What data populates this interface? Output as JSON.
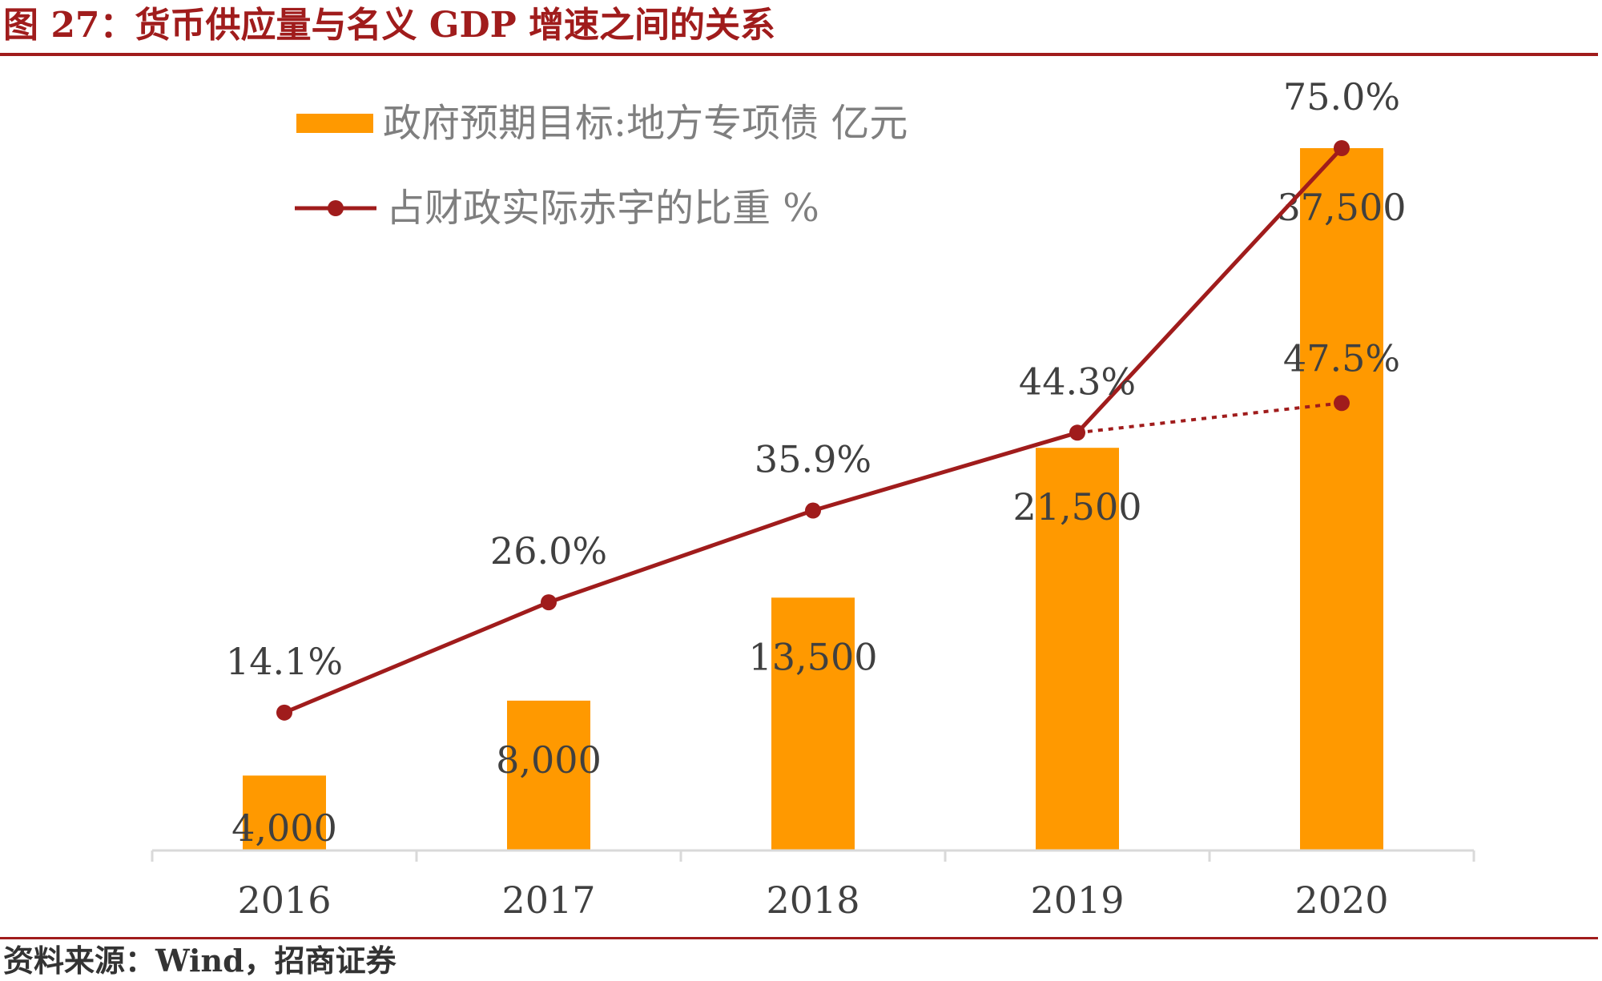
{
  "figure": {
    "title": "图 27：货币供应量与名义 GDP 增速之间的关系",
    "source": "资料来源：Wind，招商证券"
  },
  "colors": {
    "bar": "#ff9900",
    "line": "#a01c1c",
    "label": "#404040",
    "legend_text": "#7f7f7f",
    "axis": "#d9d9d9"
  },
  "chart_data": {
    "type": "bar",
    "categories": [
      "2016",
      "2017",
      "2018",
      "2019",
      "2020"
    ],
    "series": [
      {
        "name": "政府预期目标:地方专项债 亿元",
        "kind": "bar",
        "values": [
          4000,
          8000,
          13500,
          21500,
          37500
        ],
        "labels": [
          "4,000",
          "8,000",
          "13,500",
          "21,500",
          "37,500"
        ]
      },
      {
        "name": "占财政实际赤字的比重 %",
        "kind": "line",
        "values": [
          14.1,
          26.0,
          35.9,
          44.3,
          75.0
        ],
        "labels": [
          "14.1%",
          "26.0%",
          "35.9%",
          "44.3%",
          "75.0%"
        ]
      },
      {
        "kind": "line-dotted",
        "x": [
          "2019",
          "2020"
        ],
        "values": [
          44.3,
          47.5
        ],
        "labels": [
          "",
          "47.5%"
        ]
      }
    ],
    "legend_position": "top-left",
    "grid": false
  }
}
